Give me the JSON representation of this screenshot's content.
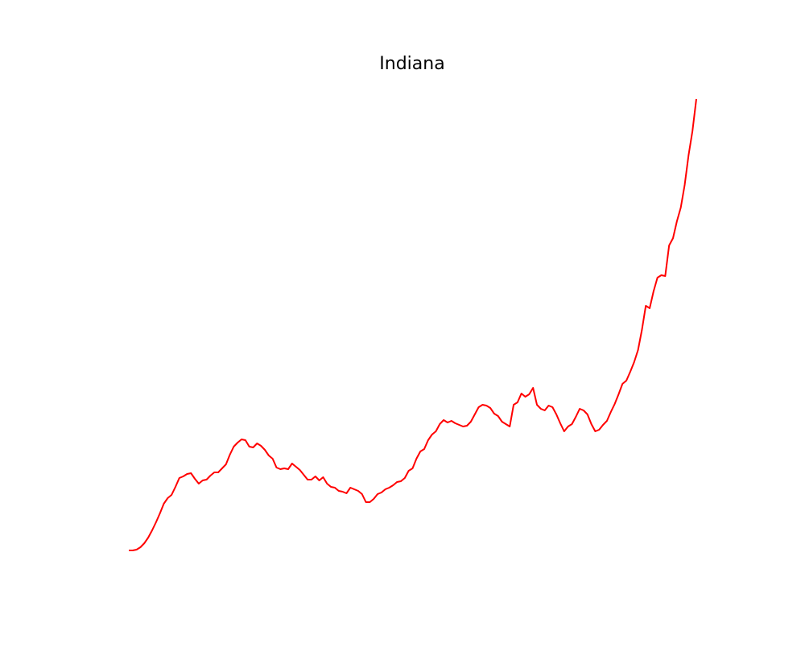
{
  "chart_data": {
    "type": "line",
    "title": "Indiana",
    "color": "#ff0000",
    "values": [
      0,
      0,
      1,
      4,
      9,
      16,
      25,
      35,
      46,
      58,
      65,
      69,
      79,
      90,
      92,
      95,
      96,
      89,
      83,
      87,
      88,
      93,
      97,
      97,
      102,
      107,
      119,
      129,
      134,
      138,
      137,
      129,
      128,
      133,
      130,
      125,
      118,
      114,
      103,
      101,
      102,
      101,
      108,
      104,
      100,
      94,
      88,
      88,
      92,
      87,
      91,
      83,
      79,
      78,
      74,
      73,
      71,
      78,
      76,
      74,
      70,
      60,
      60,
      64,
      70,
      72,
      76,
      78,
      81,
      85,
      86,
      90,
      99,
      102,
      114,
      123,
      126,
      137,
      144,
      148,
      157,
      162,
      159,
      161,
      158,
      156,
      154,
      155,
      160,
      169,
      178,
      181,
      180,
      177,
      170,
      167,
      160,
      157,
      154,
      181,
      184,
      195,
      191,
      194,
      202,
      181,
      176,
      174,
      180,
      178,
      169,
      158,
      148,
      154,
      157,
      166,
      176,
      174,
      169,
      157,
      148,
      150,
      156,
      161,
      172,
      182,
      194,
      207,
      211,
      222,
      234,
      249,
      274,
      304,
      301,
      322,
      339,
      342,
      341,
      379,
      388,
      409,
      426,
      454,
      491,
      521,
      561
    ]
  }
}
